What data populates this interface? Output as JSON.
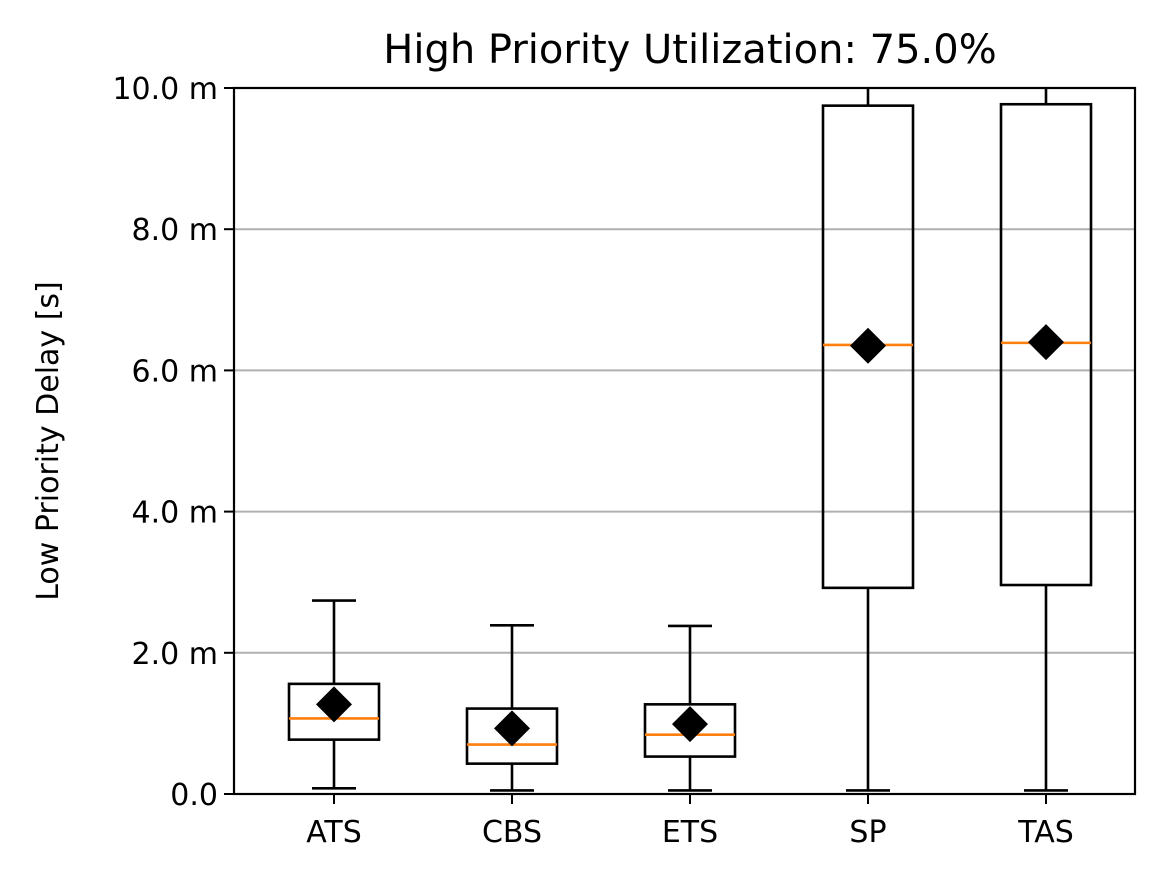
{
  "chart_data": {
    "type": "box",
    "title": "High Priority Utilization: 75.0%",
    "xlabel": "",
    "ylabel": "Low Priority Delay [s]",
    "ylim": [
      0,
      10
    ],
    "y_unit_note": "values in milliseconds (tick suffix m)",
    "yticks": [
      {
        "value": 0,
        "label": "0.0"
      },
      {
        "value": 2,
        "label": "2.0 m"
      },
      {
        "value": 4,
        "label": "4.0 m"
      },
      {
        "value": 6,
        "label": "6.0 m"
      },
      {
        "value": 8,
        "label": "8.0 m"
      },
      {
        "value": 10,
        "label": "10.0 m"
      }
    ],
    "grid": "y",
    "categories": [
      "ATS",
      "CBS",
      "ETS",
      "SP",
      "TAS"
    ],
    "boxes": [
      {
        "name": "ATS",
        "whisker_low": 0.08,
        "q1": 0.77,
        "median": 1.07,
        "q3": 1.56,
        "whisker_high": 2.74,
        "mean": 1.27
      },
      {
        "name": "CBS",
        "whisker_low": 0.05,
        "q1": 0.43,
        "median": 0.7,
        "q3": 1.21,
        "whisker_high": 2.39,
        "mean": 0.93
      },
      {
        "name": "ETS",
        "whisker_low": 0.05,
        "q1": 0.53,
        "median": 0.84,
        "q3": 1.27,
        "whisker_high": 2.38,
        "mean": 0.99
      },
      {
        "name": "SP",
        "whisker_low": 0.05,
        "q1": 2.92,
        "median": 6.36,
        "q3": 9.75,
        "whisker_high": 10.0,
        "mean": 6.35
      },
      {
        "name": "TAS",
        "whisker_low": 0.05,
        "q1": 2.96,
        "median": 6.39,
        "q3": 9.77,
        "whisker_high": 10.0,
        "mean": 6.4
      }
    ],
    "colors": {
      "box": "#000000",
      "median": "#ff7f0e",
      "mean_marker": "#000000",
      "grid": "#b0b0b0"
    }
  }
}
